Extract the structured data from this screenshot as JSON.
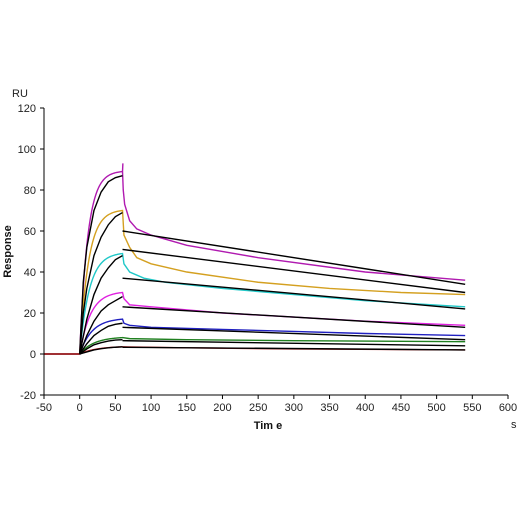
{
  "chart_data": {
    "type": "line",
    "title": "",
    "xlabel": "Tim e",
    "ylabel": "Response",
    "x_unit": "s",
    "y_unit": "RU",
    "xlim": [
      -50,
      600
    ],
    "ylim": [
      -20,
      120
    ],
    "x_ticks": [
      -50,
      0,
      50,
      100,
      150,
      200,
      250,
      300,
      350,
      400,
      450,
      500,
      550,
      600
    ],
    "y_ticks": [
      -20,
      0,
      20,
      40,
      60,
      80,
      100,
      120
    ],
    "grid": false,
    "legend": "none",
    "association_end_s": 60,
    "run_end_s": 540,
    "series": [
      {
        "color": "#b01ab0",
        "plateau": 88,
        "injection_end": 89,
        "dissociation": [
          [
            60,
            89
          ],
          [
            61,
            80
          ],
          [
            63,
            73
          ],
          [
            70,
            65
          ],
          [
            80,
            61
          ],
          [
            100,
            58
          ],
          [
            150,
            53
          ],
          [
            250,
            47
          ],
          [
            400,
            40
          ],
          [
            540,
            36
          ]
        ]
      },
      {
        "color": "#d4a020",
        "plateau": 70,
        "injection_end": 70,
        "dissociation": [
          [
            60,
            70
          ],
          [
            62,
            58
          ],
          [
            70,
            52
          ],
          [
            80,
            47
          ],
          [
            100,
            44
          ],
          [
            150,
            40
          ],
          [
            250,
            35
          ],
          [
            350,
            32
          ],
          [
            450,
            30
          ],
          [
            540,
            29
          ]
        ]
      },
      {
        "color": "#20c8c8",
        "plateau": 49,
        "injection_end": 49,
        "dissociation": [
          [
            60,
            49
          ],
          [
            62,
            44
          ],
          [
            70,
            40
          ],
          [
            90,
            37
          ],
          [
            120,
            35
          ],
          [
            200,
            32
          ],
          [
            300,
            29
          ],
          [
            400,
            26
          ],
          [
            540,
            23
          ]
        ]
      },
      {
        "color": "#e020e0",
        "plateau": 29,
        "injection_end": 30,
        "dissociation": [
          [
            60,
            30
          ],
          [
            62,
            27
          ],
          [
            70,
            24
          ],
          [
            100,
            23
          ],
          [
            200,
            20
          ],
          [
            300,
            18
          ],
          [
            400,
            16
          ],
          [
            540,
            14
          ]
        ]
      },
      {
        "color": "#2020c0",
        "plateau": 16,
        "injection_end": 17,
        "dissociation": [
          [
            60,
            17
          ],
          [
            62,
            15
          ],
          [
            70,
            14
          ],
          [
            100,
            13
          ],
          [
            200,
            12
          ],
          [
            300,
            11
          ],
          [
            400,
            10
          ],
          [
            540,
            9
          ]
        ]
      },
      {
        "color": "#208020",
        "plateau": 8,
        "injection_end": 8,
        "dissociation": [
          [
            60,
            8
          ],
          [
            70,
            7.5
          ],
          [
            150,
            7
          ],
          [
            300,
            6.5
          ],
          [
            540,
            6
          ]
        ]
      },
      {
        "color": "#c02020",
        "plateau": 3.5,
        "injection_end": 3.5,
        "dissociation": [
          [
            60,
            3.5
          ],
          [
            150,
            3
          ],
          [
            300,
            2.5
          ],
          [
            540,
            2
          ]
        ]
      }
    ],
    "fit_lines": [
      {
        "association": [
          [
            0,
            0
          ],
          [
            5,
            35
          ],
          [
            10,
            52
          ],
          [
            20,
            70
          ],
          [
            30,
            79
          ],
          [
            40,
            84
          ],
          [
            50,
            86
          ],
          [
            60,
            87
          ]
        ],
        "dissociation": [
          [
            60,
            60
          ],
          [
            540,
            34
          ]
        ]
      },
      {
        "association": [
          [
            0,
            0
          ],
          [
            5,
            20
          ],
          [
            10,
            32
          ],
          [
            20,
            48
          ],
          [
            30,
            57
          ],
          [
            40,
            63
          ],
          [
            50,
            67
          ],
          [
            60,
            69
          ]
        ],
        "dissociation": [
          [
            60,
            51
          ],
          [
            540,
            30
          ]
        ]
      },
      {
        "association": [
          [
            0,
            0
          ],
          [
            10,
            17
          ],
          [
            20,
            29
          ],
          [
            30,
            37
          ],
          [
            40,
            42
          ],
          [
            50,
            46
          ],
          [
            60,
            48
          ]
        ],
        "dissociation": [
          [
            60,
            37
          ],
          [
            540,
            22
          ]
        ]
      },
      {
        "association": [
          [
            0,
            0
          ],
          [
            10,
            9
          ],
          [
            20,
            16
          ],
          [
            30,
            21
          ],
          [
            40,
            24
          ],
          [
            50,
            26
          ],
          [
            60,
            28
          ]
        ],
        "dissociation": [
          [
            60,
            23
          ],
          [
            540,
            13
          ]
        ]
      },
      {
        "association": [
          [
            0,
            0
          ],
          [
            10,
            5
          ],
          [
            20,
            9
          ],
          [
            30,
            11.5
          ],
          [
            40,
            13.5
          ],
          [
            50,
            14.5
          ],
          [
            60,
            15
          ]
        ],
        "dissociation": [
          [
            60,
            13
          ],
          [
            540,
            7
          ]
        ]
      },
      {
        "association": [
          [
            0,
            0
          ],
          [
            10,
            2.5
          ],
          [
            20,
            4.5
          ],
          [
            30,
            5.5
          ],
          [
            40,
            6.3
          ],
          [
            50,
            6.8
          ],
          [
            60,
            7
          ]
        ],
        "dissociation": [
          [
            60,
            6.5
          ],
          [
            540,
            4
          ]
        ]
      },
      {
        "association": [
          [
            0,
            0
          ],
          [
            10,
            1
          ],
          [
            20,
            2
          ],
          [
            30,
            2.6
          ],
          [
            40,
            3
          ],
          [
            50,
            3.3
          ],
          [
            60,
            3.5
          ]
        ],
        "dissociation": [
          [
            60,
            3.3
          ],
          [
            540,
            2
          ]
        ]
      }
    ]
  }
}
